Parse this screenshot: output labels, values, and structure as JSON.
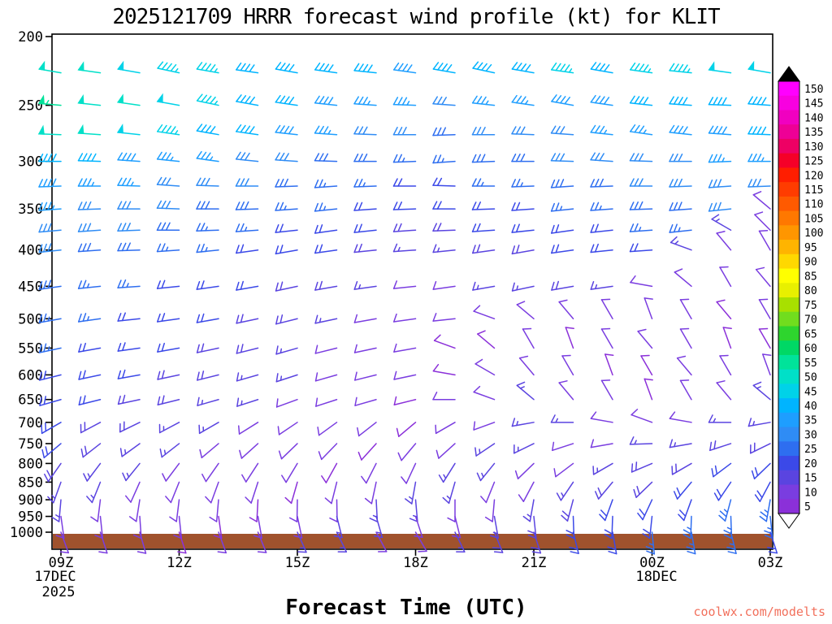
{
  "chart": {
    "title": "2025121709 HRRR forecast wind profile (kt) for KLIT",
    "xlabel": "Forecast Time (UTC)",
    "watermark": "coolwx.com/modelts",
    "watermark_color": "#f2705c",
    "axis_color": "#000000",
    "surface_color": "#a0522d"
  },
  "chart_data": {
    "type": "wind-barb-profile",
    "units": "kt",
    "y_axis_label_values": [
      200,
      250,
      300,
      350,
      400,
      450,
      500,
      550,
      600,
      650,
      700,
      750,
      800,
      850,
      900,
      950,
      1000
    ],
    "x_ticks": [
      "09Z",
      "12Z",
      "15Z",
      "18Z",
      "21Z",
      "00Z",
      "03Z"
    ],
    "x_tick_time_indices": [
      0,
      3,
      6,
      9,
      12,
      15,
      18
    ],
    "x_date_labels": {
      "start_date": "17DEC",
      "start_year": "2025",
      "mid_date": "18DEC"
    },
    "times": [
      "09Z",
      "10Z",
      "11Z",
      "12Z",
      "13Z",
      "14Z",
      "15Z",
      "16Z",
      "17Z",
      "18Z",
      "19Z",
      "20Z",
      "21Z",
      "22Z",
      "23Z",
      "00Z",
      "01Z",
      "02Z",
      "03Z"
    ],
    "levels_hpa": [
      225,
      250,
      275,
      300,
      325,
      350,
      375,
      400,
      450,
      500,
      550,
      600,
      650,
      700,
      750,
      800,
      850,
      900,
      950,
      1000
    ],
    "speeds_kt": [
      [
        52,
        50,
        48,
        45,
        45,
        42,
        40,
        42,
        40,
        38,
        40,
        40,
        42,
        45,
        42,
        45,
        45,
        48,
        48
      ],
      [
        55,
        52,
        50,
        48,
        45,
        42,
        40,
        38,
        35,
        35,
        32,
        35,
        35,
        38,
        38,
        40,
        40,
        42,
        42
      ],
      [
        52,
        50,
        48,
        45,
        42,
        40,
        38,
        35,
        32,
        30,
        28,
        30,
        32,
        32,
        35,
        35,
        38,
        38,
        40
      ],
      [
        42,
        40,
        38,
        35,
        35,
        32,
        30,
        28,
        28,
        25,
        25,
        28,
        28,
        30,
        30,
        32,
        32,
        35,
        35
      ],
      [
        38,
        35,
        35,
        32,
        30,
        30,
        28,
        25,
        25,
        22,
        22,
        25,
        25,
        28,
        28,
        30,
        30,
        32,
        32
      ],
      [
        35,
        32,
        32,
        30,
        28,
        28,
        25,
        25,
        22,
        20,
        20,
        22,
        22,
        25,
        25,
        28,
        28,
        30,
        12
      ],
      [
        32,
        30,
        30,
        28,
        25,
        25,
        22,
        22,
        20,
        18,
        18,
        20,
        20,
        22,
        22,
        25,
        25,
        15,
        10
      ],
      [
        30,
        28,
        28,
        25,
        25,
        22,
        20,
        20,
        18,
        15,
        15,
        18,
        18,
        20,
        20,
        22,
        15,
        10,
        12
      ],
      [
        28,
        25,
        25,
        22,
        22,
        20,
        18,
        18,
        15,
        12,
        12,
        15,
        15,
        18,
        15,
        12,
        10,
        12,
        10
      ],
      [
        25,
        25,
        22,
        22,
        20,
        18,
        18,
        15,
        12,
        12,
        10,
        10,
        12,
        10,
        12,
        10,
        10,
        8,
        10
      ],
      [
        25,
        22,
        22,
        20,
        18,
        18,
        15,
        12,
        12,
        10,
        8,
        8,
        10,
        8,
        10,
        12,
        10,
        8,
        8
      ],
      [
        22,
        22,
        20,
        18,
        18,
        15,
        15,
        12,
        10,
        10,
        8,
        10,
        12,
        10,
        8,
        8,
        10,
        12,
        10
      ],
      [
        22,
        20,
        18,
        18,
        15,
        15,
        12,
        12,
        10,
        8,
        10,
        12,
        15,
        12,
        10,
        8,
        10,
        12,
        15
      ],
      [
        20,
        18,
        18,
        15,
        15,
        12,
        12,
        10,
        10,
        8,
        10,
        12,
        15,
        15,
        12,
        10,
        12,
        15,
        15
      ],
      [
        20,
        18,
        15,
        15,
        12,
        12,
        10,
        10,
        8,
        10,
        12,
        15,
        15,
        12,
        12,
        15,
        15,
        18,
        18
      ],
      [
        18,
        15,
        15,
        12,
        12,
        10,
        10,
        8,
        10,
        12,
        15,
        15,
        12,
        12,
        15,
        18,
        18,
        20,
        20
      ],
      [
        15,
        15,
        12,
        12,
        10,
        10,
        8,
        10,
        12,
        15,
        15,
        12,
        12,
        15,
        18,
        18,
        20,
        20,
        22
      ],
      [
        15,
        12,
        12,
        10,
        10,
        8,
        10,
        12,
        15,
        15,
        12,
        12,
        15,
        18,
        20,
        20,
        22,
        25,
        25
      ],
      [
        12,
        12,
        10,
        10,
        8,
        10,
        12,
        15,
        15,
        12,
        12,
        15,
        18,
        20,
        20,
        22,
        25,
        25,
        25
      ],
      [
        12,
        10,
        10,
        8,
        10,
        12,
        15,
        15,
        12,
        12,
        15,
        18,
        18,
        20,
        22,
        25,
        25,
        25,
        22
      ]
    ],
    "dirs_deg": [
      [
        280,
        278,
        280,
        282,
        280,
        278,
        280,
        278,
        276,
        278,
        280,
        282,
        280,
        278,
        280,
        278,
        276,
        278,
        280
      ],
      [
        275,
        276,
        278,
        280,
        282,
        280,
        278,
        276,
        274,
        272,
        274,
        276,
        278,
        280,
        278,
        276,
        274,
        272,
        274
      ],
      [
        272,
        274,
        276,
        278,
        280,
        278,
        276,
        274,
        272,
        270,
        268,
        270,
        272,
        274,
        276,
        278,
        276,
        274,
        272
      ],
      [
        270,
        272,
        274,
        276,
        278,
        276,
        274,
        272,
        270,
        268,
        266,
        268,
        270,
        272,
        274,
        272,
        270,
        268,
        270
      ],
      [
        268,
        270,
        272,
        274,
        272,
        270,
        268,
        266,
        268,
        270,
        272,
        270,
        268,
        266,
        268,
        270,
        268,
        266,
        268
      ],
      [
        266,
        268,
        270,
        272,
        270,
        268,
        266,
        264,
        266,
        268,
        270,
        268,
        266,
        264,
        266,
        268,
        266,
        264,
        310
      ],
      [
        265,
        266,
        268,
        270,
        268,
        266,
        264,
        262,
        264,
        266,
        268,
        266,
        264,
        262,
        264,
        266,
        264,
        300,
        315
      ],
      [
        264,
        266,
        268,
        266,
        264,
        262,
        260,
        262,
        264,
        266,
        264,
        262,
        260,
        262,
        264,
        266,
        290,
        320,
        330
      ],
      [
        262,
        264,
        266,
        264,
        262,
        260,
        258,
        260,
        262,
        264,
        262,
        260,
        258,
        260,
        262,
        280,
        310,
        330,
        320
      ],
      [
        260,
        262,
        264,
        262,
        260,
        258,
        256,
        258,
        260,
        262,
        264,
        290,
        310,
        320,
        330,
        340,
        330,
        320,
        330
      ],
      [
        258,
        260,
        262,
        260,
        258,
        256,
        254,
        256,
        258,
        260,
        290,
        310,
        330,
        340,
        330,
        320,
        330,
        340,
        330
      ],
      [
        256,
        258,
        260,
        258,
        256,
        254,
        252,
        254,
        256,
        258,
        280,
        300,
        320,
        330,
        340,
        330,
        320,
        330,
        340
      ],
      [
        254,
        256,
        258,
        256,
        254,
        252,
        250,
        252,
        254,
        256,
        270,
        290,
        310,
        320,
        330,
        340,
        330,
        320,
        310
      ],
      [
        240,
        242,
        244,
        242,
        240,
        238,
        236,
        234,
        232,
        230,
        240,
        250,
        260,
        270,
        280,
        290,
        280,
        270,
        260
      ],
      [
        230,
        232,
        234,
        232,
        230,
        228,
        226,
        224,
        222,
        220,
        228,
        236,
        244,
        252,
        260,
        268,
        260,
        252,
        244
      ],
      [
        215,
        217,
        219,
        217,
        215,
        213,
        211,
        209,
        207,
        205,
        212,
        219,
        226,
        233,
        240,
        247,
        240,
        233,
        226
      ],
      [
        200,
        202,
        204,
        202,
        200,
        198,
        196,
        194,
        192,
        190,
        196,
        202,
        208,
        214,
        220,
        226,
        220,
        214,
        208
      ],
      [
        185,
        187,
        189,
        187,
        185,
        183,
        181,
        179,
        177,
        175,
        180,
        185,
        190,
        195,
        200,
        205,
        200,
        195,
        190
      ],
      [
        172,
        174,
        176,
        174,
        172,
        170,
        168,
        166,
        164,
        162,
        166,
        170,
        174,
        178,
        182,
        186,
        182,
        178,
        174
      ],
      [
        160,
        162,
        164,
        162,
        160,
        158,
        156,
        154,
        152,
        150,
        154,
        158,
        162,
        166,
        170,
        174,
        170,
        166,
        162
      ]
    ],
    "colorbar": {
      "units": "kt",
      "values": [
        5,
        10,
        15,
        20,
        25,
        30,
        35,
        40,
        45,
        50,
        55,
        60,
        65,
        70,
        75,
        80,
        85,
        90,
        95,
        100,
        105,
        110,
        115,
        120,
        125,
        130,
        135,
        140,
        145,
        150
      ],
      "colors": [
        "#8b30d9",
        "#7a3de0",
        "#5a44e0",
        "#3b49e8",
        "#2e6ef0",
        "#2f8cf5",
        "#1e9eff",
        "#00b4ff",
        "#00d2e8",
        "#00e0c8",
        "#00e39a",
        "#00d865",
        "#2ed52e",
        "#71dd1e",
        "#a8e000",
        "#e8f000",
        "#ffff00",
        "#ffd800",
        "#ffb400",
        "#ff9600",
        "#ff7800",
        "#ff5a00",
        "#ff3c00",
        "#ff1e00",
        "#f50028",
        "#ee0064",
        "#ee0096",
        "#f000c0",
        "#f800e0",
        "#ff00ff"
      ]
    }
  }
}
